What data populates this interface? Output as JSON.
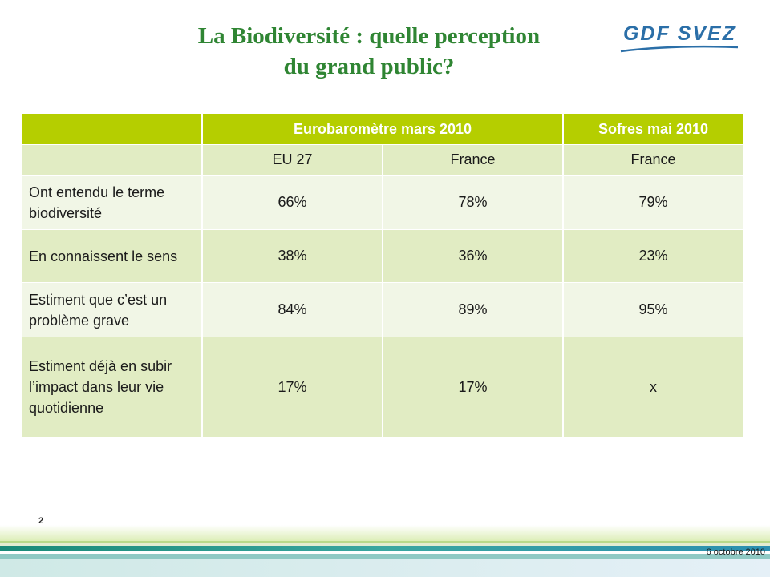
{
  "slide": {
    "title_line1": "La Biodiversité : quelle perception",
    "title_line2": "du grand public?",
    "logo_text": "GDF SVEZ",
    "page_number": "2",
    "date": "6 octobre 2010"
  },
  "table": {
    "header": {
      "corner": "",
      "group1": "Eurobaromètre mars 2010",
      "group2": "Sofres mai 2010"
    },
    "subheader": {
      "corner": "",
      "col1": "EU 27",
      "col2": "France",
      "col3": "France"
    },
    "rows": [
      {
        "label": "Ont entendu le terme biodiversité",
        "v1": "66%",
        "v2": "78%",
        "v3": "79%"
      },
      {
        "label": "En connaissent le sens",
        "v1": "38%",
        "v2": "36%",
        "v3": "23%"
      },
      {
        "label": "Estiment que c’est un problème grave",
        "v1": "84%",
        "v2": "89%",
        "v3": "95%"
      },
      {
        "label": "Estiment déjà en subir l’impact dans leur vie quotidienne",
        "v1": "17%",
        "v2": "17%",
        "v3": "x"
      }
    ]
  },
  "colors": {
    "title": "#2f8533",
    "header_bg": "#b5ce00",
    "row_light": "#f1f6e6",
    "row_dark": "#e1ecc3",
    "logo": "#2b6fa8"
  }
}
